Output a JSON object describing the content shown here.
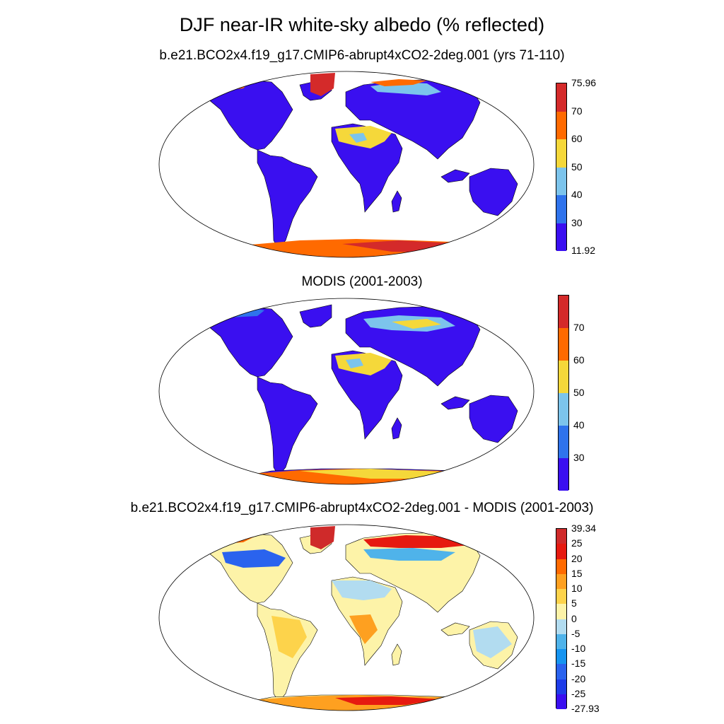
{
  "figure": {
    "title": "DJF near-IR white-sky albedo (% reflected)"
  },
  "panels": [
    {
      "title": "b.e21.BCO2x4.f19_g17.CMIP6-abrupt4xCO2-2deg.001 (yrs 71-110)",
      "colorbar": {
        "colors": [
          "#3a0ff0",
          "#2f73ec",
          "#7cc4ec",
          "#f5d83a",
          "#ff6a00",
          "#d42a2a"
        ],
        "labels": [
          "11.92",
          "30",
          "40",
          "50",
          "60",
          "70",
          "75.96"
        ]
      }
    },
    {
      "title": "MODIS (2001-2003)",
      "colorbar": {
        "colors": [
          "#3a0ff0",
          "#2f73ec",
          "#7cc4ec",
          "#f5d83a",
          "#ff6a00",
          "#d42a2a"
        ],
        "labels": [
          "30",
          "40",
          "50",
          "60",
          "70"
        ]
      }
    },
    {
      "title": "b.e21.BCO2x4.f19_g17.CMIP6-abrupt4xCO2-2deg.001 - MODIS (2001-2003)",
      "colorbar": {
        "colors": [
          "#3a0ff0",
          "#1e3ce8",
          "#2a63ee",
          "#1694f0",
          "#4fb3ea",
          "#b2dcf0",
          "#fdf3a8",
          "#fdd34b",
          "#fea020",
          "#ff6a00",
          "#e61a10",
          "#cf2a2a"
        ],
        "labels": [
          "-27.93",
          "-25",
          "-20",
          "-15",
          "-10",
          "-5",
          "0",
          "5",
          "10",
          "15",
          "20",
          "25",
          "39.34"
        ]
      }
    }
  ]
}
